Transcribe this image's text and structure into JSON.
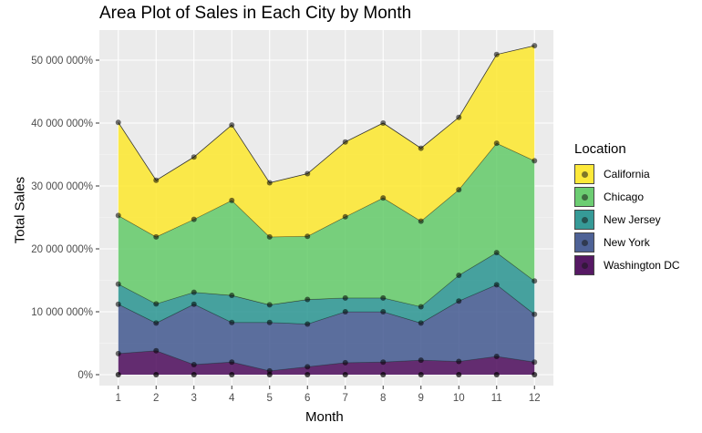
{
  "chart_data": {
    "type": "area",
    "title": "Area Plot of Sales in Each City by Month",
    "xlabel": "Month",
    "ylabel": "Total Sales",
    "x": [
      1,
      2,
      3,
      4,
      5,
      6,
      7,
      8,
      9,
      10,
      11,
      12
    ],
    "ylim": [
      0,
      55000000
    ],
    "y_ticks": [
      0,
      10000000,
      20000000,
      30000000,
      40000000,
      50000000
    ],
    "y_tick_labels": [
      "0%",
      "10 000 000%",
      "20 000 000%",
      "30 000 000%",
      "40 000 000%",
      "50 000 000%"
    ],
    "stacked": true,
    "grid": true,
    "legend_position": "right",
    "legend_title": "Location",
    "series": [
      {
        "name": "Washington DC",
        "color": "#440154",
        "values": [
          3350000,
          3800000,
          1600000,
          2000000,
          600000,
          1250000,
          1900000,
          2000000,
          2300000,
          2100000,
          2900000,
          2000000
        ]
      },
      {
        "name": "New York",
        "color": "#3b528b",
        "values": [
          7850000,
          4400000,
          9600000,
          6300000,
          7700000,
          6800000,
          8100000,
          8000000,
          5900000,
          9600000,
          11400000,
          7600000
        ]
      },
      {
        "name": "New Jersey",
        "color": "#21908c",
        "values": [
          3200000,
          3050000,
          1900000,
          4300000,
          2800000,
          3900000,
          2200000,
          2200000,
          2600000,
          4100000,
          5100000,
          5300000
        ]
      },
      {
        "name": "Chicago",
        "color": "#5dc863",
        "values": [
          10900000,
          10650000,
          11600000,
          15100000,
          10800000,
          10050000,
          12900000,
          15900000,
          13600000,
          13600000,
          17400000,
          19100000
        ]
      },
      {
        "name": "California",
        "color": "#fde725",
        "values": [
          14800000,
          9000000,
          9900000,
          12000000,
          8600000,
          9950000,
          11900000,
          11900000,
          11600000,
          11500000,
          14100000,
          18300000
        ]
      }
    ]
  }
}
